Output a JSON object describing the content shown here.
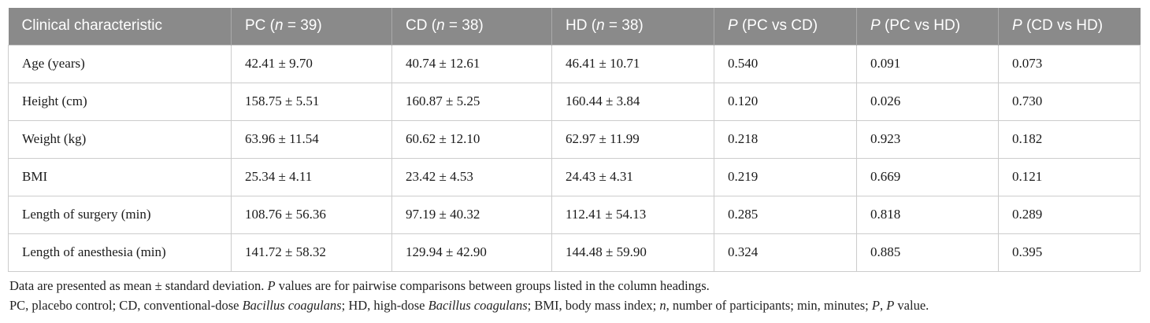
{
  "table": {
    "columns": [
      {
        "key": "clinical-characteristic",
        "runs": [
          {
            "t": "Clinical characteristic"
          }
        ]
      },
      {
        "key": "pc",
        "runs": [
          {
            "t": "PC ("
          },
          {
            "t": "n",
            "i": true
          },
          {
            "t": " = 39)"
          }
        ]
      },
      {
        "key": "cd",
        "runs": [
          {
            "t": "CD ("
          },
          {
            "t": "n",
            "i": true
          },
          {
            "t": " = 38)"
          }
        ]
      },
      {
        "key": "hd",
        "runs": [
          {
            "t": "HD ("
          },
          {
            "t": "n",
            "i": true
          },
          {
            "t": " = 38)"
          }
        ]
      },
      {
        "key": "p-pc-vs-cd",
        "runs": [
          {
            "t": "P",
            "i": true
          },
          {
            "t": " (PC vs CD)"
          }
        ]
      },
      {
        "key": "p-pc-vs-hd",
        "runs": [
          {
            "t": "P",
            "i": true
          },
          {
            "t": " (PC vs HD)"
          }
        ]
      },
      {
        "key": "p-cd-vs-hd",
        "runs": [
          {
            "t": "P",
            "i": true
          },
          {
            "t": " (CD vs HD)"
          }
        ]
      }
    ],
    "rows": [
      {
        "label": "Age (years)",
        "values": [
          "42.41 ± 9.70",
          "40.74 ± 12.61",
          "46.41 ± 10.71",
          "0.540",
          "0.091",
          "0.073"
        ]
      },
      {
        "label": "Height (cm)",
        "values": [
          "158.75 ± 5.51",
          "160.87 ± 5.25",
          "160.44 ± 3.84",
          "0.120",
          "0.026",
          "0.730"
        ]
      },
      {
        "label": "Weight (kg)",
        "values": [
          "63.96 ± 11.54",
          "60.62 ± 12.10",
          "62.97 ± 11.99",
          "0.218",
          "0.923",
          "0.182"
        ]
      },
      {
        "label": "BMI",
        "values": [
          "25.34 ± 4.11",
          "23.42 ± 4.53",
          "24.43 ± 4.31",
          "0.219",
          "0.669",
          "0.121"
        ]
      },
      {
        "label": "Length of surgery (min)",
        "values": [
          "108.76 ± 56.36",
          "97.19 ± 40.32",
          "112.41 ± 54.13",
          "0.285",
          "0.818",
          "0.289"
        ]
      },
      {
        "label": "Length of anesthesia (min)",
        "values": [
          "141.72 ± 58.32",
          "129.94 ± 42.90",
          "144.48 ± 59.90",
          "0.324",
          "0.885",
          "0.395"
        ]
      }
    ]
  },
  "footnotes": [
    {
      "runs": [
        {
          "t": "Data are presented as mean ± standard deviation. "
        },
        {
          "t": "P",
          "i": true
        },
        {
          "t": " values are for pairwise comparisons between groups listed in the column headings."
        }
      ]
    },
    {
      "runs": [
        {
          "t": "PC, placebo control; CD, conventional-dose "
        },
        {
          "t": "Bacillus coagulans",
          "i": true
        },
        {
          "t": "; HD, high-dose "
        },
        {
          "t": "Bacillus coagulans",
          "i": true
        },
        {
          "t": "; BMI, body mass index; "
        },
        {
          "t": "n",
          "i": true
        },
        {
          "t": ", number of participants; min, minutes; "
        },
        {
          "t": "P",
          "i": true
        },
        {
          "t": ", "
        },
        {
          "t": "P",
          "i": true
        },
        {
          "t": " value."
        }
      ]
    }
  ],
  "colors": {
    "header_bg": "#8a8a8a",
    "header_text": "#ffffff",
    "header_divider": "#a9a9a9",
    "body_border": "#cccccc",
    "body_text": "#1a1a1a"
  }
}
